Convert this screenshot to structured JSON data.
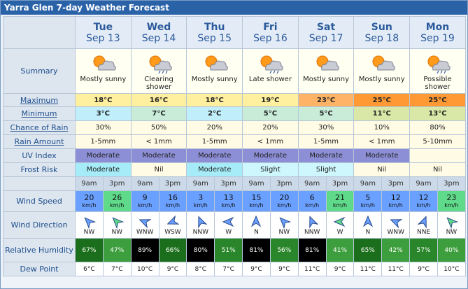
{
  "title": "Yarra Glen 7-day Weather Forecast",
  "labels": {
    "summary": "Summary",
    "maximum": "Maximum",
    "minimum": "Minimum",
    "chance_of_rain": "Chance of Rain",
    "rain_amount": "Rain Amount",
    "uv_index": "UV Index",
    "frost_risk": "Frost Risk",
    "wind_speed": "Wind Speed",
    "wind_direction": "Wind Direction",
    "relative_humidity": "Relative Humidity",
    "dew_point": "Dew Point"
  },
  "days": [
    {
      "day": "Tue",
      "date": "Sep 13",
      "summary": "Mostly sunny",
      "maximum": "18°C",
      "minimum": "3°C",
      "chance_of_rain": "30%",
      "rain_amount": "1-5mm",
      "uv_index": "Moderate",
      "frost_risk": "Moderate",
      "periods": [
        {
          "time": "9am",
          "wind_speed": 20,
          "wind_unit": "km/h",
          "wind_direction": "NW",
          "relative_humidity": "67%",
          "dew_point": "6°C"
        },
        {
          "time": "3pm",
          "wind_speed": 26,
          "wind_unit": "km/h",
          "wind_direction": "NW",
          "relative_humidity": "47%",
          "dew_point": "7°C"
        }
      ]
    },
    {
      "day": "Wed",
      "date": "Sep 14",
      "summary": "Clearing shower",
      "maximum": "16°C",
      "minimum": "7°C",
      "chance_of_rain": "50%",
      "rain_amount": "< 1mm",
      "uv_index": "Moderate",
      "frost_risk": "Nil",
      "periods": [
        {
          "time": "9am",
          "wind_speed": 9,
          "wind_unit": "km/h",
          "wind_direction": "WNW",
          "relative_humidity": "89%",
          "dew_point": "10°C"
        },
        {
          "time": "3pm",
          "wind_speed": 16,
          "wind_unit": "km/h",
          "wind_direction": "WSW",
          "relative_humidity": "66%",
          "dew_point": "9°C"
        }
      ]
    },
    {
      "day": "Thu",
      "date": "Sep 15",
      "summary": "Mostly sunny",
      "maximum": "18°C",
      "minimum": "2°C",
      "chance_of_rain": "20%",
      "rain_amount": "1-5mm",
      "uv_index": "Moderate",
      "frost_risk": "Moderate",
      "periods": [
        {
          "time": "9am",
          "wind_speed": 3,
          "wind_unit": "km/h",
          "wind_direction": "NNW",
          "relative_humidity": "80%",
          "dew_point": "8°C"
        },
        {
          "time": "3pm",
          "wind_speed": 13,
          "wind_unit": "km/h",
          "wind_direction": "W",
          "relative_humidity": "51%",
          "dew_point": "7°C"
        }
      ]
    },
    {
      "day": "Fri",
      "date": "Sep 16",
      "summary": "Late shower",
      "maximum": "19°C",
      "minimum": "5°C",
      "chance_of_rain": "20%",
      "rain_amount": "< 1mm",
      "uv_index": "Moderate",
      "frost_risk": "Slight",
      "periods": [
        {
          "time": "9am",
          "wind_speed": 15,
          "wind_unit": "km/h",
          "wind_direction": "N",
          "relative_humidity": "81%",
          "dew_point": "9°C"
        },
        {
          "time": "3pm",
          "wind_speed": 20,
          "wind_unit": "km/h",
          "wind_direction": "NW",
          "relative_humidity": "56%",
          "dew_point": "9°C"
        }
      ]
    },
    {
      "day": "Sat",
      "date": "Sep 17",
      "summary": "Mostly sunny",
      "maximum": "23°C",
      "minimum": "5°C",
      "chance_of_rain": "30%",
      "rain_amount": "1-5mm",
      "uv_index": "Moderate",
      "frost_risk": "Slight",
      "periods": [
        {
          "time": "9am",
          "wind_speed": 6,
          "wind_unit": "km/h",
          "wind_direction": "NNW",
          "relative_humidity": "81%",
          "dew_point": "11°C"
        },
        {
          "time": "3pm",
          "wind_speed": 21,
          "wind_unit": "km/h",
          "wind_direction": "W",
          "relative_humidity": "41%",
          "dew_point": "9°C"
        }
      ]
    },
    {
      "day": "Sun",
      "date": "Sep 18",
      "summary": "Mostly sunny",
      "maximum": "25°C",
      "minimum": "11°C",
      "chance_of_rain": "10%",
      "rain_amount": "< 1mm",
      "uv_index": "Moderate",
      "frost_risk": "Nil",
      "periods": [
        {
          "time": "9am",
          "wind_speed": 5,
          "wind_unit": "km/h",
          "wind_direction": "N",
          "relative_humidity": "65%",
          "dew_point": "11°C"
        },
        {
          "time": "3pm",
          "wind_speed": 12,
          "wind_unit": "km/h",
          "wind_direction": "WNW",
          "relative_humidity": "42%",
          "dew_point": "11°C"
        }
      ]
    },
    {
      "day": "Mon",
      "date": "Sep 19",
      "summary": "Possible shower",
      "maximum": "25°C",
      "minimum": "13°C",
      "chance_of_rain": "80%",
      "rain_amount": "5-10mm",
      "uv_index": null,
      "frost_risk": "Nil",
      "periods": [
        {
          "time": "9am",
          "wind_speed": 12,
          "wind_unit": "km/h",
          "wind_direction": "NNE",
          "relative_humidity": "57%",
          "dew_point": "9°C"
        },
        {
          "time": "3pm",
          "wind_speed": 23,
          "wind_unit": "km/h",
          "wind_direction": "NW",
          "relative_humidity": "40%",
          "dew_point": "10°C"
        }
      ]
    }
  ]
}
